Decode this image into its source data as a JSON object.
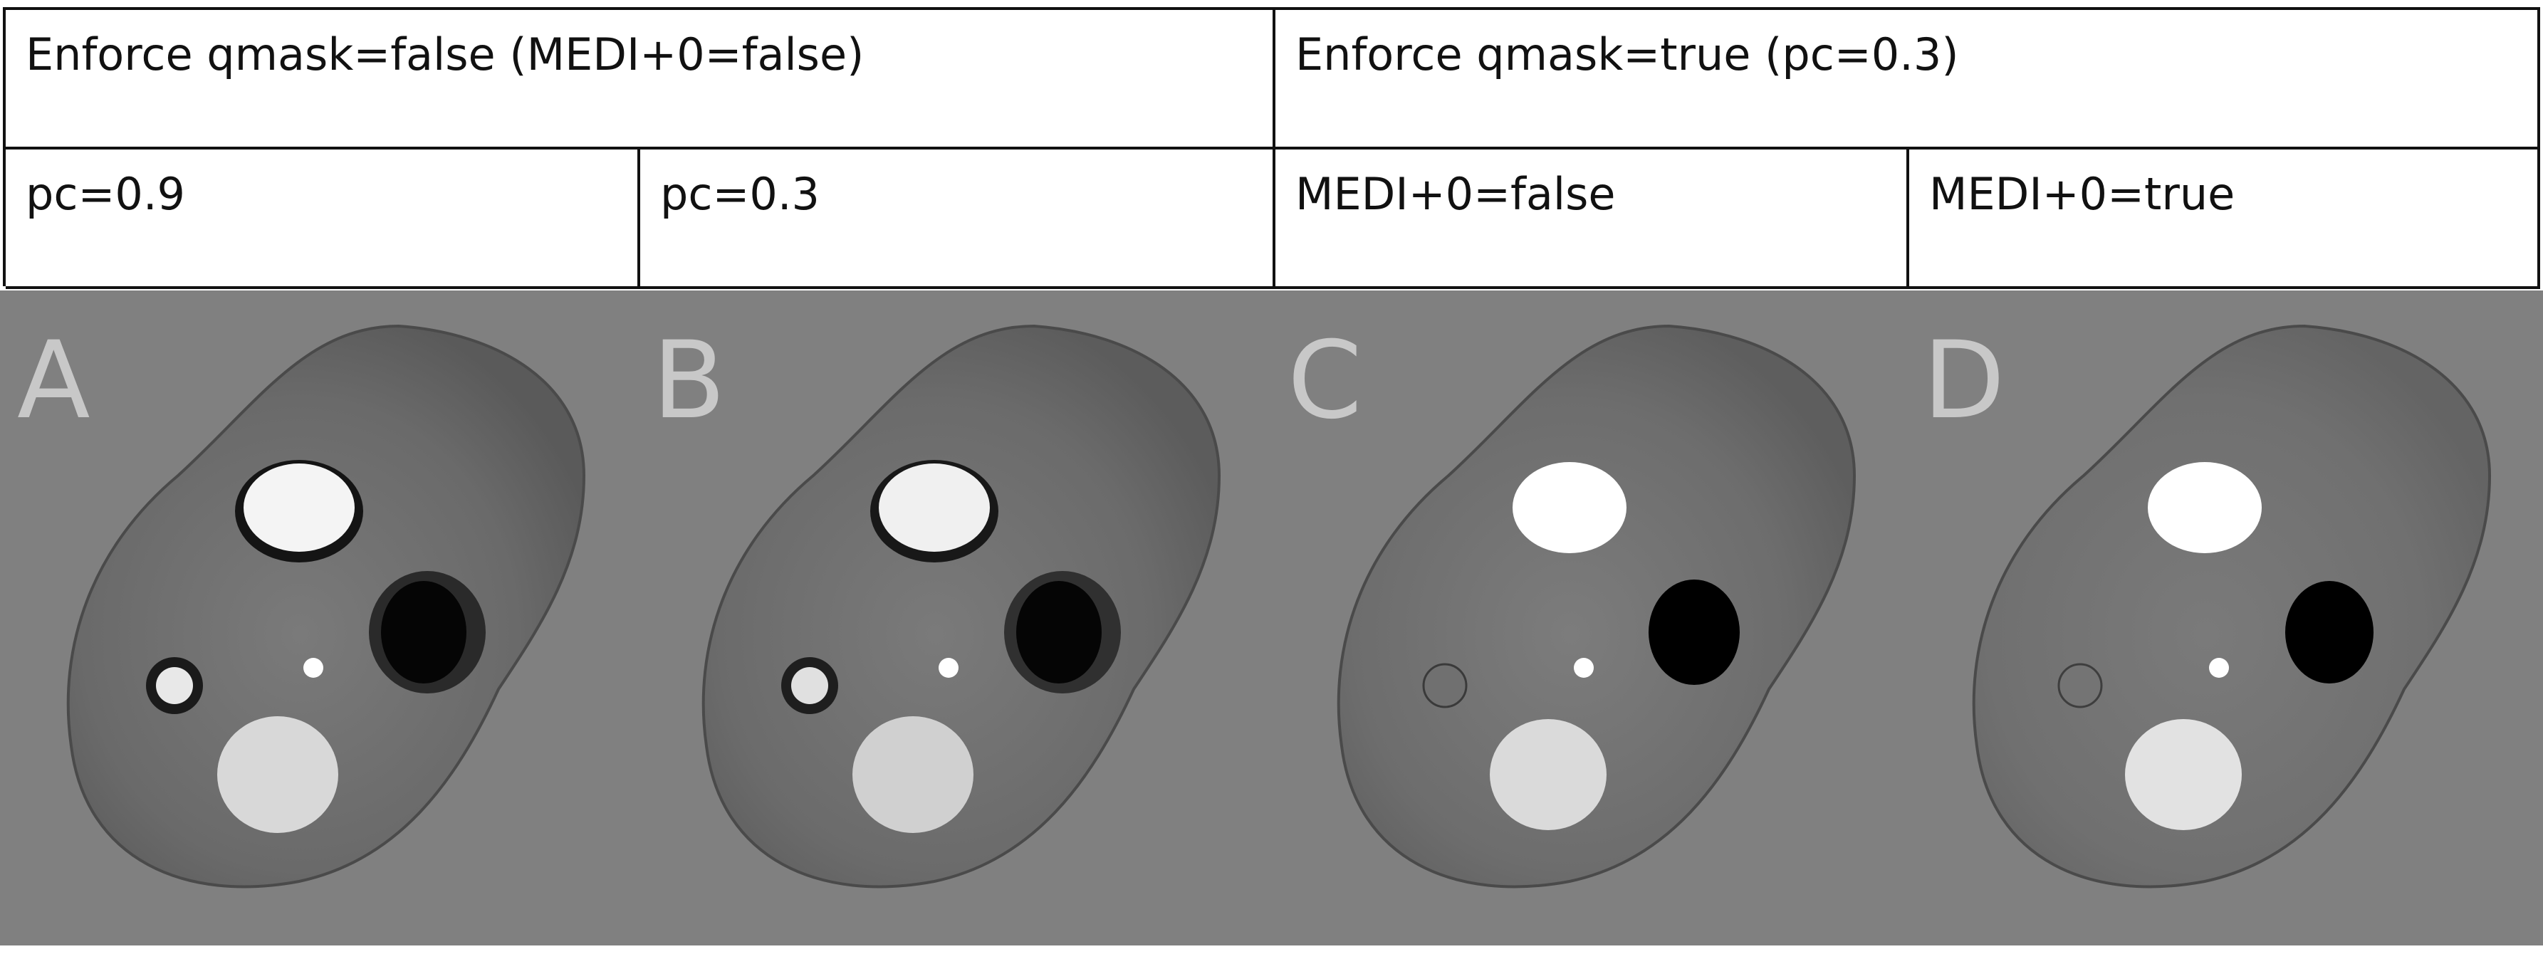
{
  "table": {
    "group_false": "Enforce qmask=false (MEDI+0=false)",
    "group_true": "Enforce qmask=true (pc=0.3)",
    "pc_09": "pc=0.9",
    "pc_03": "pc=0.3",
    "medi_false": "MEDI+0=false",
    "medi_true": "MEDI+0=true"
  },
  "panels": [
    "A",
    "B",
    "C",
    "D"
  ],
  "colors": {
    "background": "#808080",
    "tissue": "#6e6e6e",
    "bright": "#ffffff",
    "dark": "#000000",
    "letter": "#c8c8c8"
  }
}
